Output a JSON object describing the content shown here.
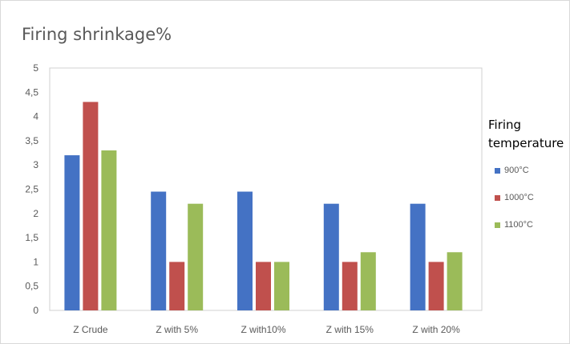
{
  "chart_data": {
    "type": "bar",
    "title": "Firing shrinkage%",
    "legend_title": "Firing temperature",
    "categories": [
      "Z Crude",
      "Z with 5%",
      "Z with10%",
      "Z with 15%",
      "Z with 20%"
    ],
    "series": [
      {
        "name": "900°C",
        "color": "#4472C4",
        "values": [
          3.2,
          2.45,
          2.45,
          2.2,
          2.2
        ]
      },
      {
        "name": "1000°C",
        "color": "#C0504D",
        "values": [
          4.3,
          1.0,
          1.0,
          1.0,
          1.0
        ]
      },
      {
        "name": "1100°C",
        "color": "#9BBB59",
        "values": [
          3.3,
          2.2,
          1.0,
          1.2,
          1.2
        ]
      }
    ],
    "y_ticks": [
      "0",
      "0,5",
      "1",
      "1,5",
      "2",
      "2,5",
      "3",
      "3,5",
      "4",
      "4,5",
      "5"
    ],
    "ylim": [
      0,
      5
    ],
    "grid": false,
    "legend_position": "right"
  }
}
